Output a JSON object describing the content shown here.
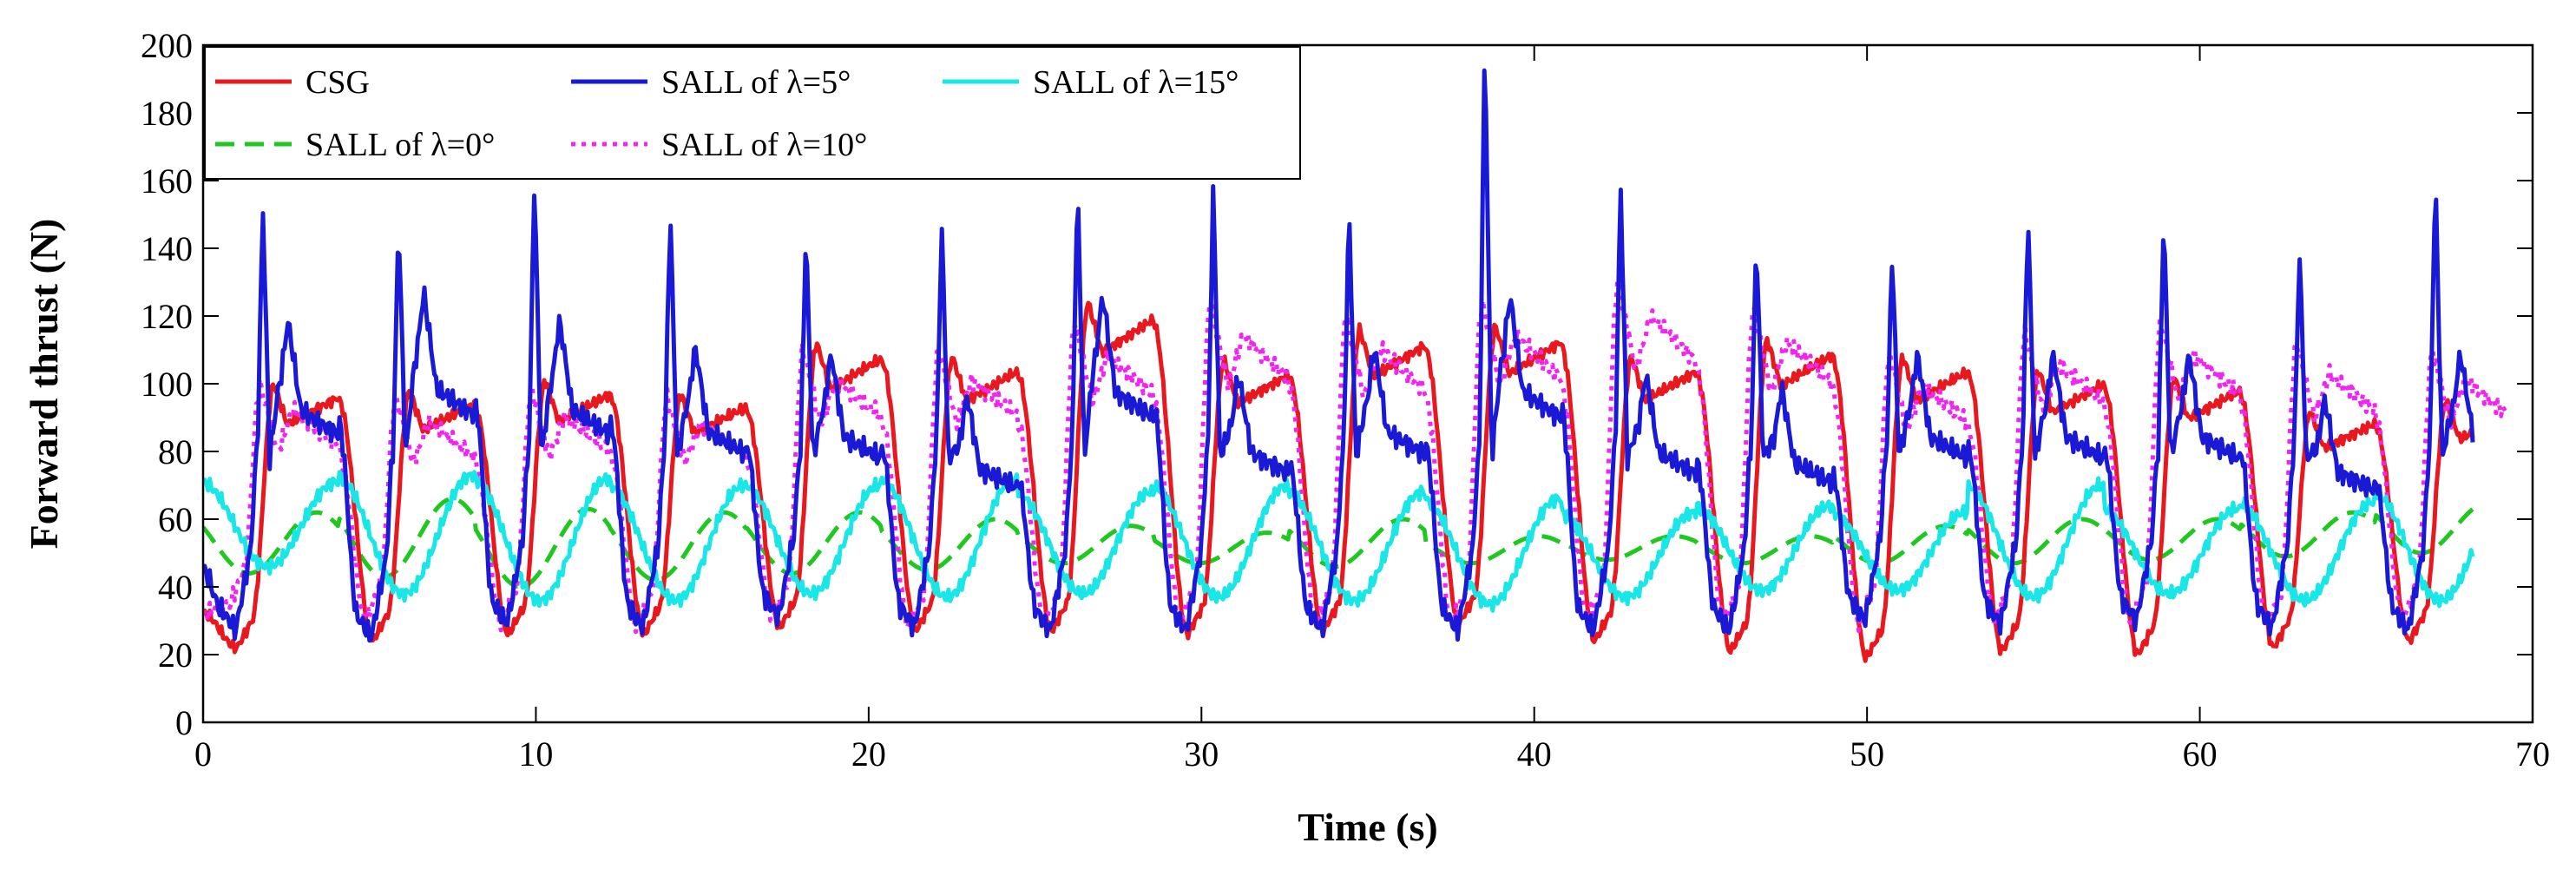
{
  "chart_data": {
    "type": "line",
    "title": "",
    "xlabel": "Time (s)",
    "ylabel": "Forward thrust (N)",
    "xlim": [
      0,
      70
    ],
    "ylim": [
      0,
      200
    ],
    "xticks": [
      0,
      10,
      20,
      30,
      40,
      50,
      60,
      70
    ],
    "yticks": [
      0,
      20,
      40,
      60,
      80,
      100,
      120,
      140,
      160,
      180,
      200
    ],
    "xtick_labels": [
      "0",
      "10",
      "20",
      "30",
      "40",
      "50",
      "60",
      "70"
    ],
    "ytick_labels": [
      "0",
      "20",
      "40",
      "60",
      "80",
      "100",
      "120",
      "140",
      "160",
      "180",
      "200"
    ],
    "grid": false,
    "legend_position": "top-left",
    "period_s": 4.08,
    "series": [
      {
        "name": "CSG",
        "legend_label": "CSG",
        "color": "#e8181e",
        "style": "solid",
        "x_range": [
          0,
          68.2
        ],
        "peaks": [
          100,
          98,
          101,
          97,
          112,
          108,
          124,
          107,
          116,
          117,
          108,
          113,
          108,
          104,
          102,
          92,
          95
        ],
        "troughs": [
          22,
          24,
          26,
          26,
          28,
          27,
          27,
          26,
          27,
          29,
          24,
          21,
          19,
          21,
          20,
          22,
          24
        ]
      },
      {
        "name": "SALL of λ=5°",
        "legend_label": "SALL of λ=5°",
        "color": "#1a1ad6",
        "style": "solid",
        "x_range": [
          0,
          68.2
        ],
        "spikes": [
          153,
          149,
          161,
          152,
          145,
          147,
          159,
          158,
          152,
          203,
          159,
          143,
          139,
          151,
          150,
          139,
          162
        ],
        "secondary_peaks": [
          118,
          126,
          118,
          110,
          108,
          96,
          125,
          102,
          110,
          125,
          102,
          98,
          108,
          108,
          108,
          95,
          108
        ],
        "troughs": [
          27,
          25,
          29,
          28,
          31,
          28,
          27,
          27,
          27,
          27,
          27,
          27,
          30,
          29,
          30,
          28,
          27
        ]
      },
      {
        "name": "SALL of λ=15°",
        "legend_label": "SALL of λ=15°",
        "color": "#19e6e6",
        "style": "solid",
        "x_range": [
          0,
          68.2
        ],
        "peaks": [
          71,
          73,
          72,
          70,
          70,
          72,
          68,
          70,
          68,
          66,
          62,
          64,
          62,
          70,
          63,
          65,
          68
        ],
        "troughs": [
          46,
          38,
          36,
          36,
          38,
          37,
          38,
          37,
          36,
          35,
          37,
          39,
          39,
          37,
          38,
          36,
          36
        ]
      },
      {
        "name": "SALL of λ=0°",
        "legend_label": "SALL of λ=0°",
        "color": "#1ec81e",
        "style": "dashed",
        "x_range": [
          0,
          68.2
        ],
        "peaks": [
          62,
          66,
          63,
          62,
          62,
          60,
          58,
          56,
          60,
          55,
          55,
          55,
          58,
          60,
          60,
          62,
          65
        ],
        "troughs": [
          44,
          43,
          40,
          42,
          44,
          45,
          47,
          47,
          46,
          47,
          48,
          47,
          47,
          47,
          48,
          49,
          50
        ]
      },
      {
        "name": "SALL of λ=10°",
        "legend_label": "SALL of λ=10°",
        "color": "#f224f2",
        "style": "dotted",
        "x_range": [
          0,
          69.2
        ],
        "peaks": [
          100,
          96,
          98,
          96,
          110,
          110,
          118,
          124,
          120,
          124,
          130,
          122,
          108,
          115,
          118,
          112,
          110
        ],
        "troughs": [
          35,
          30,
          29,
          28,
          30,
          28,
          29,
          30,
          29,
          29,
          30,
          29,
          29,
          30,
          30,
          29,
          30
        ]
      }
    ]
  }
}
